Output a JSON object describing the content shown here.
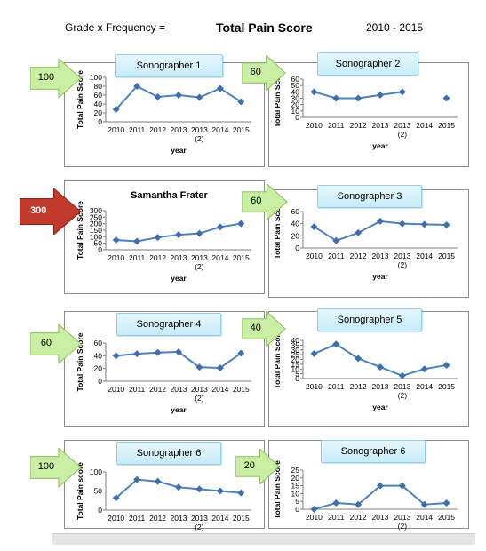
{
  "header": {
    "left_text": "Grade x Frequency =",
    "title": "Total Pain Score",
    "range": "2010 - 2015"
  },
  "arrows": [
    {
      "label": "100",
      "color": "green"
    },
    {
      "label": "60",
      "color": "green"
    },
    {
      "label": "300",
      "color": "red"
    },
    {
      "label": "60",
      "color": "green"
    },
    {
      "label": "60",
      "color": "green"
    },
    {
      "label": "40",
      "color": "green"
    },
    {
      "label": "100",
      "color": "green"
    },
    {
      "label": "20",
      "color": "green"
    }
  ],
  "chart_data": [
    {
      "type": "line",
      "title": "Sonographer 1",
      "xlabel": "year",
      "ylabel": "Total Pain Score",
      "categories": [
        "2010",
        "2011",
        "2012",
        "2013",
        "2013 (2)",
        "2014",
        "2015"
      ],
      "values": [
        28,
        80,
        56,
        60,
        55,
        75,
        45
      ],
      "ylim": [
        0,
        100
      ],
      "yticks": [
        0,
        20,
        40,
        60,
        80,
        100
      ]
    },
    {
      "type": "line",
      "title": "Sonographer 2",
      "xlabel": "year",
      "ylabel": "Total Pain Score",
      "categories": [
        "2010",
        "2011",
        "2012",
        "2013",
        "2013 (2)",
        "2014",
        "2015"
      ],
      "values": [
        40,
        30,
        30,
        35,
        40,
        null,
        30
      ],
      "ylim": [
        0,
        60
      ],
      "yticks": [
        0,
        10,
        20,
        30,
        40,
        50,
        60
      ]
    },
    {
      "type": "line",
      "title": "Samantha Frater",
      "xlabel": "year",
      "ylabel": "Total Pain Score",
      "categories": [
        "2010",
        "2011",
        "2012",
        "2013",
        "2013 (2)",
        "2014",
        "2015"
      ],
      "values": [
        75,
        65,
        95,
        115,
        125,
        175,
        200
      ],
      "ylim": [
        0,
        300
      ],
      "yticks": [
        0,
        50,
        100,
        150,
        200,
        250,
        300
      ]
    },
    {
      "type": "line",
      "title": "Sonographer 3",
      "xlabel": "year",
      "ylabel": "Total Pain Score",
      "categories": [
        "2010",
        "2011",
        "2012",
        "2013",
        "2013 (2)",
        "2014",
        "2015"
      ],
      "values": [
        35,
        12,
        25,
        44,
        40,
        39,
        38
      ],
      "ylim": [
        0,
        60
      ],
      "yticks": [
        0,
        20,
        40,
        60
      ]
    },
    {
      "type": "line",
      "title": "Sonographer 4",
      "xlabel": "year",
      "ylabel": "Total Pain Score",
      "categories": [
        "2010",
        "2011",
        "2012",
        "2013",
        "2013 (2)",
        "2014",
        "2015"
      ],
      "values": [
        40,
        43,
        45,
        46,
        22,
        21,
        44
      ],
      "ylim": [
        0,
        60
      ],
      "yticks": [
        0,
        20,
        40,
        60
      ]
    },
    {
      "type": "line",
      "title": "Sonographer 5",
      "xlabel": "year",
      "ylabel": "Total Pain Score",
      "categories": [
        "2010",
        "2011",
        "2012",
        "2013",
        "2013 (2)",
        "2014",
        "2015"
      ],
      "values": [
        26,
        36,
        21,
        12,
        3,
        10,
        14
      ],
      "ylim": [
        0,
        40
      ],
      "yticks": [
        0,
        5,
        10,
        15,
        20,
        25,
        30,
        35,
        40
      ]
    },
    {
      "type": "line",
      "title": "Sonographer 6",
      "xlabel": "year",
      "ylabel": "Total Pain score",
      "categories": [
        "2010",
        "2011",
        "2012",
        "2013",
        "2013 (2)",
        "2014",
        "2015"
      ],
      "values": [
        32,
        80,
        75,
        60,
        55,
        50,
        45
      ],
      "ylim": [
        0,
        100
      ],
      "yticks": [
        0,
        50,
        100
      ]
    },
    {
      "type": "line",
      "title": "Sonographer 6",
      "xlabel": "year",
      "ylabel": "Total Pain Score",
      "categories": [
        "2010",
        "2011",
        "2012",
        "2013",
        "2013 (2)",
        "2014",
        "2015"
      ],
      "values": [
        0,
        4,
        3,
        15,
        15,
        3,
        4
      ],
      "ylim": [
        0,
        25
      ],
      "yticks": [
        0,
        5,
        10,
        15,
        20,
        25
      ]
    }
  ],
  "colors": {
    "line": "#4f81bd",
    "marker": "#3d6fb0",
    "arrow_green": "#c9efa4",
    "arrow_red": "#c0392b"
  }
}
